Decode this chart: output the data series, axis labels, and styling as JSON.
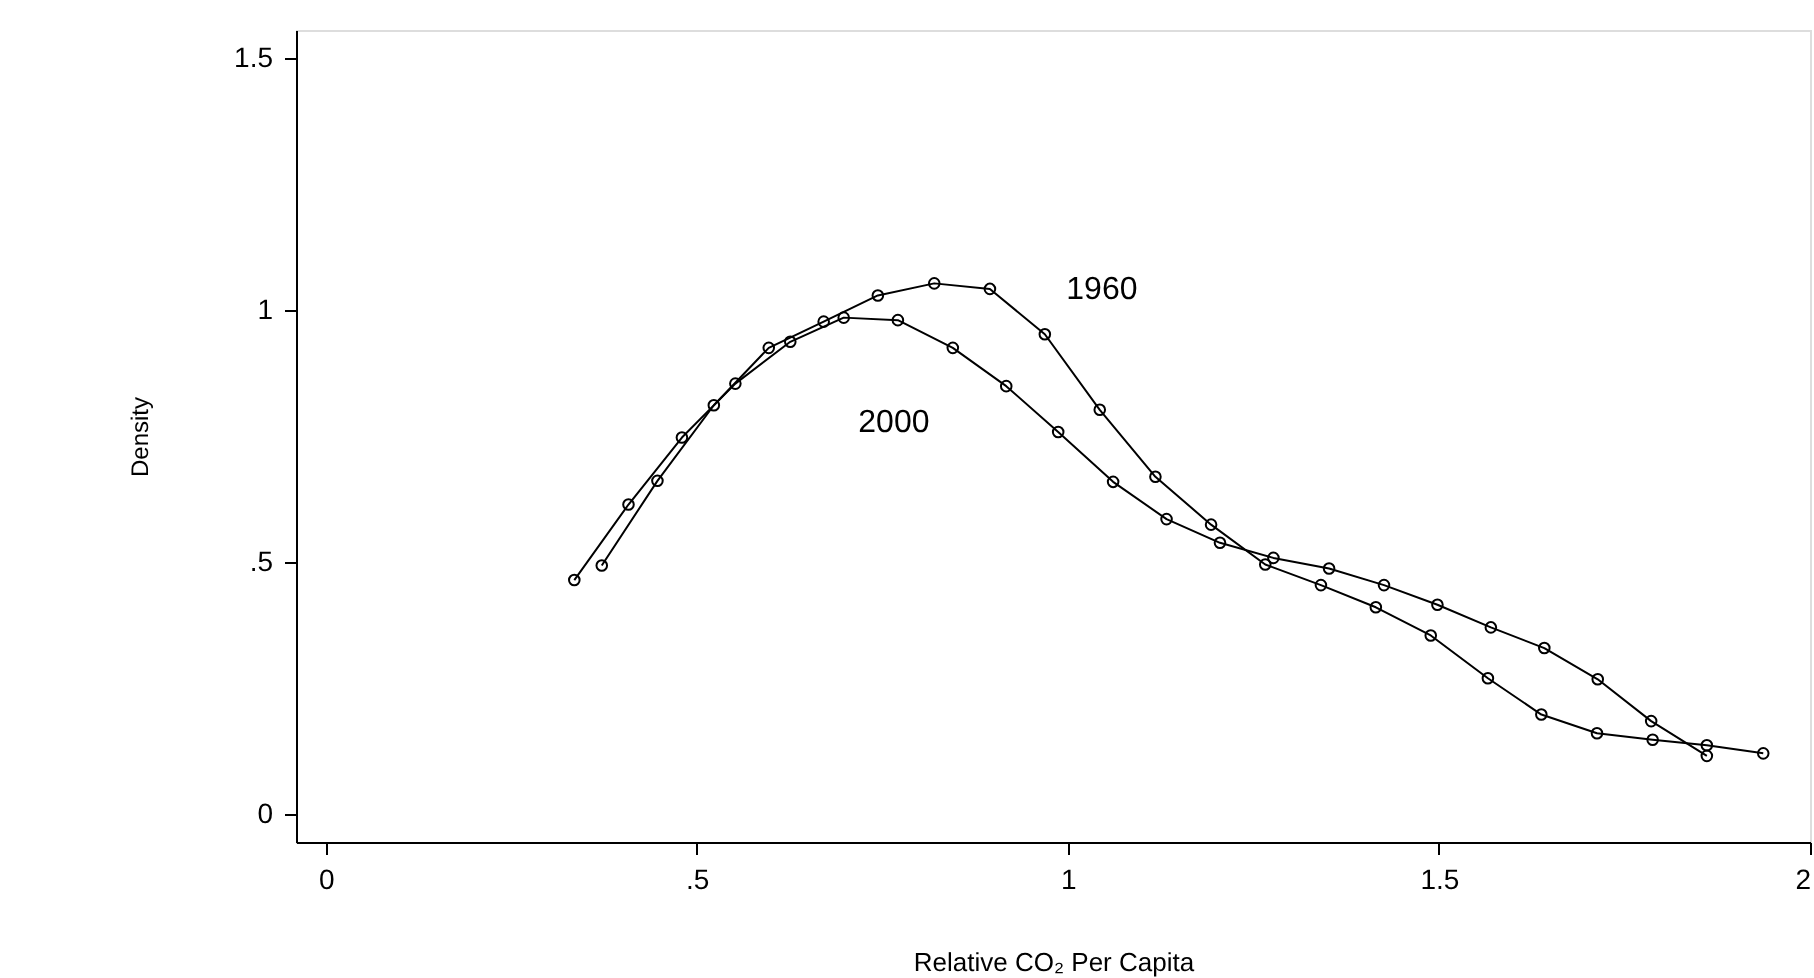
{
  "chart_data": {
    "type": "line",
    "xlabel": "Relative CO₂ Per Capita",
    "ylabel": "Density",
    "xlim": [
      -0.04,
      2.0
    ],
    "ylim": [
      -0.056,
      1.556
    ],
    "xticks": [
      0,
      {
        "value": 0.5,
        "label": ".5"
      },
      1,
      1.5,
      2
    ],
    "yticks": [
      0,
      {
        "value": 0.5,
        "label": ".5"
      },
      1,
      1.5
    ],
    "grid": false,
    "marker": "circle",
    "line_style": "solid",
    "series": [
      {
        "name": "1960",
        "color": "#000000",
        "x": [
          0.372,
          0.447,
          0.523,
          0.597,
          0.671,
          0.744,
          0.82,
          0.895,
          0.969,
          1.043,
          1.118,
          1.193,
          1.266,
          1.341,
          1.415,
          1.489,
          1.566,
          1.638,
          1.713,
          1.788,
          1.861,
          1.937
        ],
        "values": [
          0.493,
          0.661,
          0.811,
          0.925,
          0.977,
          1.029,
          1.053,
          1.042,
          0.952,
          0.802,
          0.669,
          0.574,
          0.495,
          0.454,
          0.41,
          0.354,
          0.269,
          0.197,
          0.16,
          0.147,
          0.136,
          0.12
        ]
      },
      {
        "name": "2000",
        "color": "#000000",
        "x": [
          0.335,
          0.408,
          0.48,
          0.552,
          0.626,
          0.698,
          0.771,
          0.845,
          0.917,
          0.987,
          1.061,
          1.133,
          1.205,
          1.277,
          1.352,
          1.426,
          1.498,
          1.57,
          1.642,
          1.714,
          1.786,
          1.861
        ],
        "values": [
          0.464,
          0.614,
          0.747,
          0.854,
          0.937,
          0.985,
          0.98,
          0.925,
          0.849,
          0.758,
          0.659,
          0.585,
          0.538,
          0.508,
          0.487,
          0.454,
          0.415,
          0.37,
          0.329,
          0.267,
          0.184,
          0.115
        ]
      }
    ]
  }
}
